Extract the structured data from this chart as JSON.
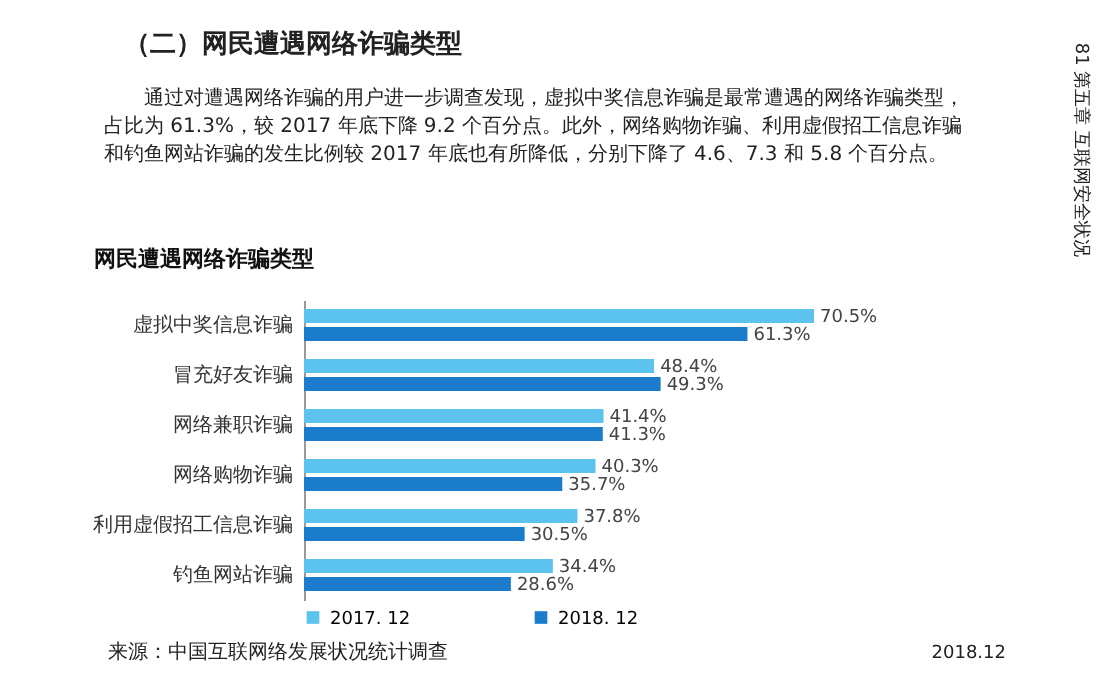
{
  "chart_data": {
    "type": "bar",
    "orientation": "horizontal",
    "title": "网民遭遇网络诈骗类型",
    "categories": [
      "虚拟中奖信息诈骗",
      "冒充好友诈骗",
      "网络兼职诈骗",
      "网络购物诈骗",
      "利用虚假招工信息诈骗",
      "钓鱼网站诈骗"
    ],
    "series": [
      {
        "name": "2017. 12",
        "color": "#5bc3ee",
        "values": [
          70.5,
          48.4,
          41.4,
          40.3,
          37.8,
          34.4
        ],
        "value_labels": [
          "70.5%",
          "48.4%",
          "41.4%",
          "40.3%",
          "37.8%",
          "34.4%"
        ]
      },
      {
        "name": "2018. 12",
        "color": "#1b7ccc",
        "values": [
          61.3,
          49.3,
          41.3,
          35.7,
          30.5,
          28.6
        ],
        "value_labels": [
          "61.3%",
          "49.3%",
          "41.3%",
          "35.7%",
          "30.5%",
          "28.6%"
        ]
      }
    ],
    "legend": "bottom",
    "grid": false,
    "annotations": [
      "（二）网民遭遇网络诈骗类型",
      "通过对遭遇网络诈骗的用户进一步调查发现，虚拟中奖信息诈骗是最常遭遇的网络诈骗类型，",
      "占比为 61.3%，较 2017 年底下降 9.2 个百分点。此外，网络购物诈骗、利用虚假招工信息诈骗",
      "和钓鱼网站诈骗的发生比例较 2017 年底也有所降低，分别下降了 4.6、7.3 和 5.8 个百分点。",
      "来源：中国互联网络发展状况统计调查",
      "2018.12",
      "81 第五章 互联网安全状况"
    ]
  }
}
